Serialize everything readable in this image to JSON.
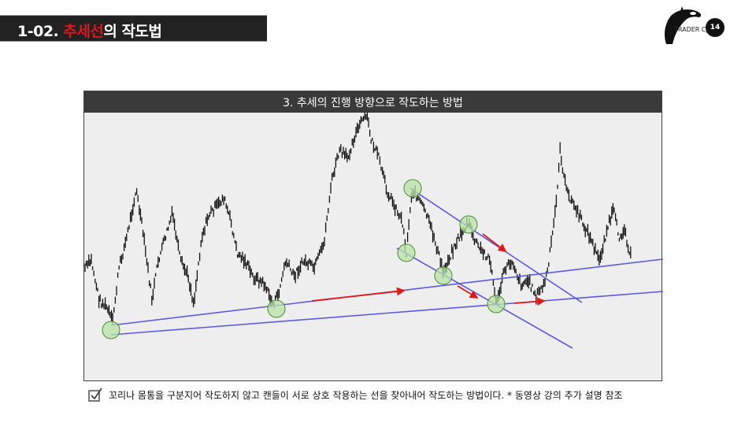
{
  "header": {
    "title_prefix": "1-02. ",
    "title_highlight": "추세선",
    "title_suffix": "의 작도법"
  },
  "logo": {
    "text": "TRADER CJ",
    "icon": "orca-icon"
  },
  "page_number": "14",
  "figure": {
    "title": "3. 추세의 진행 방향으로 작도하는 방법"
  },
  "caption": {
    "icon": "checkbox-checked-icon",
    "text": "꼬리나 몸통을 구분지어 작도하지 않고 캔들이 서로 상호 작용하는 선을 찾아내어 작도하는 방법이다. * 동영상 강의 추가 설명 참조"
  },
  "colors": {
    "accent_red": "#e0141e",
    "trendline": "#5a5ae6",
    "touch_circle": "#b9e3a6",
    "arrow": "#e01818"
  }
}
